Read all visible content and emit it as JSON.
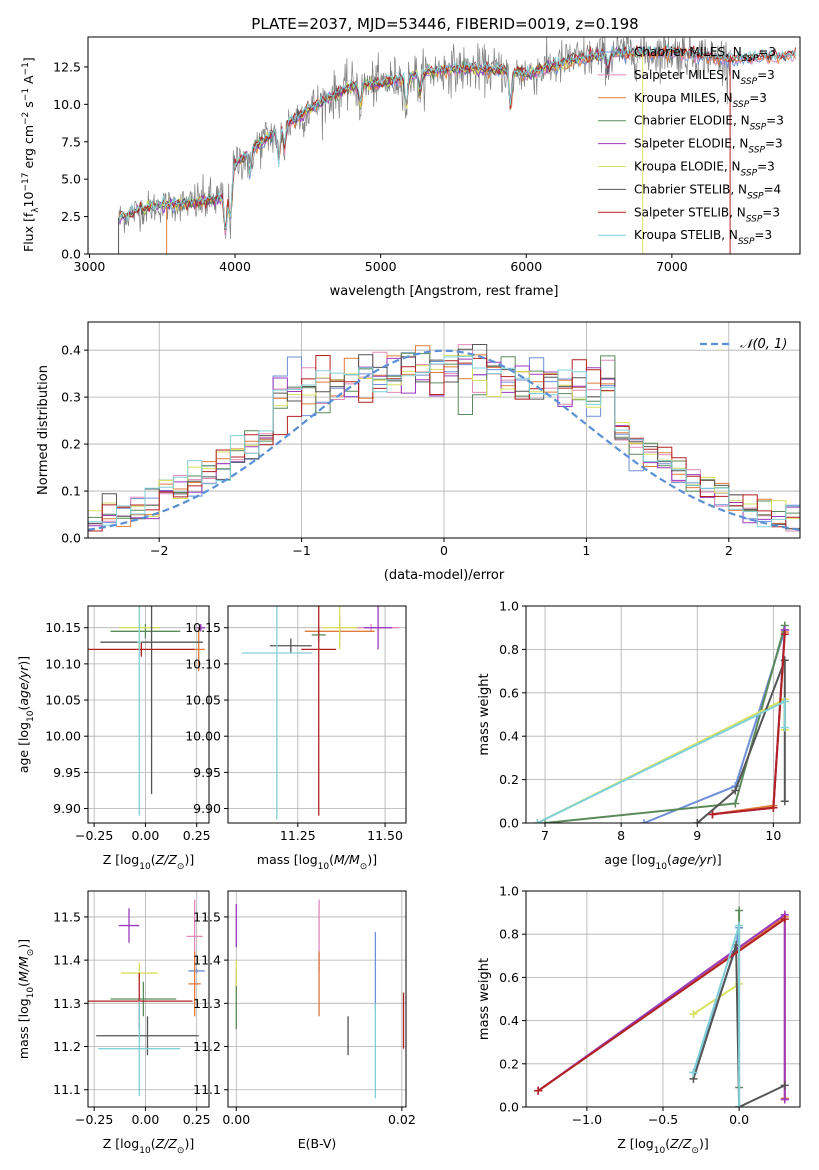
{
  "title": "PLATE=2037, MJD=53446, FIBERID=0019, z=0.198",
  "colors": {
    "Chabrier MILES": "#6f8fd8",
    "Salpeter MILES": "#e08ab8",
    "Kroupa MILES": "#e07b39",
    "Chabrier ELODIE": "#5a8a5a",
    "Salpeter ELODIE": "#9b3bbf",
    "Kroupa ELODIE": "#d8e060",
    "Chabrier STELIB": "#555555",
    "Salpeter STELIB": "#b22222",
    "Kroupa STELIB": "#80d0d8",
    "observed": "#808080",
    "normal": "#5b8fd6",
    "grid": "#b0b0b0"
  },
  "chart_data": [
    {
      "id": "spectrum",
      "type": "line",
      "title": "PLATE=2037, MJD=53446, FIBERID=0019, z=0.198",
      "xlabel": "wavelength [Angstrom, rest frame]",
      "ylabel": "Flux [f_λ 10^-17 erg cm^-2 s^-1 A^-1]",
      "xlim": [
        2990,
        7880
      ],
      "ylim": [
        0,
        14.5
      ],
      "xticks": [
        3000,
        4000,
        5000,
        6000,
        7000
      ],
      "yticks": [
        0.0,
        2.5,
        5.0,
        7.5,
        10.0,
        12.5
      ],
      "legend": [
        {
          "label": "Chabrier MILES, N",
          "sub": "SSP",
          "tail": "=3"
        },
        {
          "label": "Salpeter MILES, N",
          "sub": "SSP",
          "tail": "=3"
        },
        {
          "label": "Kroupa MILES, N",
          "sub": "SSP",
          "tail": "=3"
        },
        {
          "label": "Chabrier ELODIE, N",
          "sub": "SSP",
          "tail": "=3"
        },
        {
          "label": "Salpeter ELODIE, N",
          "sub": "SSP",
          "tail": "=3"
        },
        {
          "label": "Kroupa ELODIE, N",
          "sub": "SSP",
          "tail": "=3"
        },
        {
          "label": "Chabrier STELIB, N",
          "sub": "SSP",
          "tail": "=4"
        },
        {
          "label": "Salpeter STELIB, N",
          "sub": "SSP",
          "tail": "=3"
        },
        {
          "label": "Kroupa STELIB, N",
          "sub": "SSP",
          "tail": "=3"
        }
      ],
      "legend_loc": "right",
      "grid": false,
      "continuum_anchors": {
        "x": [
          3200,
          3400,
          3600,
          3800,
          3950,
          4000,
          4200,
          4400,
          4600,
          4800,
          5000,
          5200,
          5500,
          5800,
          6000,
          6300,
          6600,
          7000,
          7400,
          7800
        ],
        "y": [
          2.4,
          3.1,
          3.3,
          3.5,
          3.8,
          6.0,
          7.6,
          9.0,
          10.2,
          11.2,
          11.4,
          11.9,
          12.4,
          12.3,
          12.0,
          12.9,
          13.4,
          13.5,
          13.0,
          13.3
        ]
      },
      "absorption_features": [
        {
          "x": 3934,
          "depth": 2.5
        },
        {
          "x": 3969,
          "depth": 2.3
        },
        {
          "x": 4101,
          "depth": 1.5
        },
        {
          "x": 4300,
          "depth": 2.2
        },
        {
          "x": 4340,
          "depth": 1.5
        },
        {
          "x": 4861,
          "depth": 1.4
        },
        {
          "x": 5175,
          "depth": 2.2
        },
        {
          "x": 5270,
          "depth": 1.3
        },
        {
          "x": 5892,
          "depth": 2.4
        },
        {
          "x": 6563,
          "depth": 1.0
        }
      ]
    },
    {
      "id": "residuals",
      "type": "histogram",
      "xlabel": "(data-model)/error",
      "ylabel": "Normed distribution",
      "xlim": [
        -2.5,
        2.5
      ],
      "ylim": [
        0,
        0.46
      ],
      "xticks": [
        -2,
        -1,
        0,
        1,
        2
      ],
      "yticks": [
        0.0,
        0.1,
        0.2,
        0.3,
        0.4
      ],
      "bin_width": 0.1,
      "legend": "𝒩(0, 1)",
      "legend_loc": "upper right",
      "grid": true
    },
    {
      "id": "age_vs_Z",
      "type": "scatter",
      "xlabel": "Z [log10(Z/Z⊙)]",
      "ylabel": "age [log10(age/yr)]",
      "xlim": [
        -0.28,
        0.31
      ],
      "ylim": [
        9.88,
        10.18
      ],
      "xticks": [
        -0.25,
        0.0,
        0.25
      ],
      "yticks": [
        9.9,
        9.95,
        10.0,
        10.05,
        10.1,
        10.15
      ],
      "grid": true,
      "points": [
        {
          "model": "Chabrier MILES",
          "x": 0.27,
          "y": 10.15,
          "xerr": 0.02,
          "yerr": 0.005
        },
        {
          "model": "Salpeter MILES",
          "x": 0.27,
          "y": 10.15,
          "xerr": 0.02,
          "yerr": 0.005
        },
        {
          "model": "Kroupa MILES",
          "x": 0.26,
          "y": 10.12,
          "xerr": 0.03,
          "yerr": 0.03
        },
        {
          "model": "Chabrier ELODIE",
          "x": 0.0,
          "y": 10.145,
          "xerr": 0.17,
          "yerr": 0.01
        },
        {
          "model": "Salpeter ELODIE",
          "x": 0.27,
          "y": 10.15,
          "xerr": 0.02,
          "yerr": 0.005
        },
        {
          "model": "Kroupa ELODIE",
          "x": -0.03,
          "y": 10.15,
          "xerr": 0.1,
          "yerr": 0.03
        },
        {
          "model": "Chabrier STELIB",
          "x": 0.03,
          "y": 10.13,
          "xerr": 0.25,
          "yerr": 0.21
        },
        {
          "model": "Salpeter STELIB",
          "x": -0.02,
          "y": 10.12,
          "xerr": 0.26,
          "yerr": 0.01
        },
        {
          "model": "Kroupa STELIB",
          "x": -0.03,
          "y": 10.13,
          "xerr": 0.01,
          "yerr": 0.24
        }
      ]
    },
    {
      "id": "age_vs_mass",
      "type": "scatter",
      "xlabel": "mass [log10(M/M⊙)]",
      "ylabel": "",
      "xlim": [
        11.05,
        11.56
      ],
      "ylim": [
        9.88,
        10.18
      ],
      "xticks": [
        11.25,
        11.5
      ],
      "yticks": [
        9.9,
        9.95,
        10.0,
        10.05,
        10.1,
        10.15
      ],
      "grid": true,
      "points": [
        {
          "model": "Chabrier MILES",
          "x": 11.37,
          "y": 10.15,
          "xerr": 0.01,
          "yerr": 0.005
        },
        {
          "model": "Salpeter MILES",
          "x": 11.46,
          "y": 10.15,
          "xerr": 0.08,
          "yerr": 0.005
        },
        {
          "model": "Kroupa MILES",
          "x": 11.37,
          "y": 10.145,
          "xerr": 0.1,
          "yerr": 0.02
        },
        {
          "model": "Chabrier ELODIE",
          "x": 11.31,
          "y": 10.14,
          "xerr": 0.02,
          "yerr": 0.01
        },
        {
          "model": "Salpeter ELODIE",
          "x": 11.48,
          "y": 10.15,
          "xerr": 0.04,
          "yerr": 0.03
        },
        {
          "model": "Kroupa ELODIE",
          "x": 11.37,
          "y": 10.15,
          "xerr": 0.05,
          "yerr": 0.03
        },
        {
          "model": "Chabrier STELIB",
          "x": 11.23,
          "y": 10.125,
          "xerr": 0.06,
          "yerr": 0.01
        },
        {
          "model": "Salpeter STELIB",
          "x": 11.31,
          "y": 10.12,
          "xerr": 0.05,
          "yerr": 0.23
        },
        {
          "model": "Kroupa STELIB",
          "x": 11.19,
          "y": 10.115,
          "xerr": 0.1,
          "yerr": 0.23
        }
      ]
    },
    {
      "id": "weight_vs_age",
      "type": "line",
      "xlabel": "age [log10(age/yr)]",
      "ylabel": "mass weight",
      "xlim": [
        6.75,
        10.35
      ],
      "ylim": [
        0,
        1.0
      ],
      "xticks": [
        7,
        8,
        9,
        10
      ],
      "yticks": [
        0.0,
        0.2,
        0.4,
        0.6,
        0.8,
        1.0
      ],
      "grid": true,
      "series": [
        {
          "model": "Chabrier MILES",
          "x": [
            8.3,
            9.5,
            10.15
          ],
          "y": [
            0.0,
            0.17,
            0.89
          ]
        },
        {
          "model": "Salpeter MILES",
          "x": [
            9.2,
            10.0,
            10.15
          ],
          "y": [
            0.04,
            0.07,
            0.89
          ]
        },
        {
          "model": "Kroupa MILES",
          "x": [
            9.2,
            10.0,
            10.15
          ],
          "y": [
            0.04,
            0.08,
            0.88
          ]
        },
        {
          "model": "Chabrier ELODIE",
          "x": [
            7.0,
            9.5,
            10.15
          ],
          "y": [
            0.0,
            0.09,
            0.91
          ]
        },
        {
          "model": "Salpeter ELODIE",
          "x": [
            9.2,
            10.0,
            10.15
          ],
          "y": [
            0.04,
            0.07,
            0.89
          ]
        },
        {
          "model": "Kroupa ELODIE",
          "x": [
            6.9,
            10.15,
            10.15
          ],
          "y": [
            0.0,
            0.57,
            0.43
          ]
        },
        {
          "model": "Chabrier STELIB",
          "x": [
            9.0,
            9.5,
            10.15,
            10.15
          ],
          "y": [
            0.0,
            0.15,
            0.75,
            0.1
          ]
        },
        {
          "model": "Salpeter STELIB",
          "x": [
            9.2,
            10.0,
            10.15
          ],
          "y": [
            0.04,
            0.07,
            0.87
          ]
        },
        {
          "model": "Kroupa STELIB",
          "x": [
            6.9,
            10.15,
            10.15
          ],
          "y": [
            0.0,
            0.56,
            0.44
          ]
        }
      ]
    },
    {
      "id": "mass_vs_Z",
      "type": "scatter",
      "xlabel": "Z [log10(Z/Z⊙)]",
      "ylabel": "mass [log10(M/M⊙)]",
      "xlim": [
        -0.28,
        0.31
      ],
      "ylim": [
        11.06,
        11.56
      ],
      "xticks": [
        -0.25,
        0.0,
        0.25
      ],
      "yticks": [
        11.1,
        11.2,
        11.3,
        11.4,
        11.5
      ],
      "grid": true,
      "points": [
        {
          "model": "Chabrier MILES",
          "x": 0.25,
          "y": 11.375,
          "xerr": 0.04,
          "yerr": 0.005
        },
        {
          "model": "Salpeter MILES",
          "x": 0.24,
          "y": 11.455,
          "xerr": 0.04,
          "yerr": 0.085
        },
        {
          "model": "Kroupa MILES",
          "x": 0.24,
          "y": 11.345,
          "xerr": 0.03,
          "yerr": 0.075
        },
        {
          "model": "Chabrier ELODIE",
          "x": -0.01,
          "y": 11.31,
          "xerr": 0.16,
          "yerr": 0.04
        },
        {
          "model": "Salpeter ELODIE",
          "x": -0.08,
          "y": 11.48,
          "xerr": 0.05,
          "yerr": 0.04
        },
        {
          "model": "Kroupa ELODIE",
          "x": -0.03,
          "y": 11.37,
          "xerr": 0.09,
          "yerr": 0.025
        },
        {
          "model": "Chabrier STELIB",
          "x": 0.01,
          "y": 11.225,
          "xerr": 0.25,
          "yerr": 0.045
        },
        {
          "model": "Salpeter STELIB",
          "x": -0.03,
          "y": 11.305,
          "xerr": 0.26,
          "yerr": 0.065
        },
        {
          "model": "Kroupa STELIB",
          "x": -0.03,
          "y": 11.195,
          "xerr": 0.2,
          "yerr": 0.11
        }
      ]
    },
    {
      "id": "mass_vs_EBV",
      "type": "scatter",
      "xlabel": "E(B-V)",
      "ylabel": "",
      "xlim": [
        -0.001,
        0.0205
      ],
      "ylim": [
        11.06,
        11.56
      ],
      "xticks": [
        0.0,
        0.02
      ],
      "yticks": [
        11.1,
        11.2,
        11.3,
        11.4,
        11.5
      ],
      "grid": true,
      "points": [
        {
          "model": "Chabrier MILES",
          "x": 0.0168,
          "y": 11.375,
          "xerr": 0,
          "yerr": 0.09
        },
        {
          "model": "Salpeter MILES",
          "x": 0.01,
          "y": 11.455,
          "xerr": 0,
          "yerr": 0.085
        },
        {
          "model": "Kroupa MILES",
          "x": 0.01,
          "y": 11.345,
          "xerr": 0,
          "yerr": 0.075
        },
        {
          "model": "Chabrier ELODIE",
          "x": 0.0,
          "y": 11.31,
          "xerr": 0,
          "yerr": 0.07
        },
        {
          "model": "Salpeter ELODIE",
          "x": 0.0,
          "y": 11.48,
          "xerr": 0,
          "yerr": 0.05
        },
        {
          "model": "Kroupa ELODIE",
          "x": 0.0,
          "y": 11.37,
          "xerr": 0,
          "yerr": 0.03
        },
        {
          "model": "Chabrier STELIB",
          "x": 0.0135,
          "y": 11.225,
          "xerr": 0,
          "yerr": 0.045
        },
        {
          "model": "Salpeter STELIB",
          "x": 0.0202,
          "y": 11.26,
          "xerr": 0,
          "yerr": 0.065
        },
        {
          "model": "Kroupa STELIB",
          "x": 0.0168,
          "y": 11.19,
          "xerr": 0,
          "yerr": 0.11
        }
      ]
    },
    {
      "id": "weight_vs_Z",
      "type": "line",
      "xlabel": "Z [log10(Z/Z⊙)]",
      "ylabel": "mass weight",
      "xlim": [
        -1.4,
        0.4
      ],
      "ylim": [
        0,
        1.0
      ],
      "xticks": [
        -1.0,
        -0.5,
        0.0
      ],
      "yticks": [
        0.0,
        0.2,
        0.4,
        0.6,
        0.8,
        1.0
      ],
      "grid": true,
      "series": [
        {
          "model": "Chabrier MILES",
          "x": [
            -0.3,
            -0.02,
            0.0
          ],
          "y": [
            0.16,
            0.74,
            0.83
          ]
        },
        {
          "model": "Salpeter MILES",
          "x": [
            -1.32,
            0.3,
            0.3
          ],
          "y": [
            0.075,
            0.89,
            0.035
          ]
        },
        {
          "model": "Kroupa MILES",
          "x": [
            -1.32,
            0.3,
            0.3
          ],
          "y": [
            0.075,
            0.88,
            0.04
          ]
        },
        {
          "model": "Chabrier ELODIE",
          "x": [
            0.0,
            0.0,
            0.0
          ],
          "y": [
            0.91,
            0.09,
            0.0
          ]
        },
        {
          "model": "Salpeter ELODIE",
          "x": [
            -1.32,
            0.3,
            0.3
          ],
          "y": [
            0.075,
            0.89,
            0.035
          ]
        },
        {
          "model": "Kroupa ELODIE",
          "x": [
            -0.3,
            0.0
          ],
          "y": [
            0.43,
            0.57
          ]
        },
        {
          "model": "Chabrier STELIB",
          "x": [
            -0.3,
            -0.02,
            0.0,
            0.3
          ],
          "y": [
            0.13,
            0.75,
            0.0,
            0.1
          ]
        },
        {
          "model": "Salpeter STELIB",
          "x": [
            -1.32,
            0.3
          ],
          "y": [
            0.075,
            0.87
          ]
        },
        {
          "model": "Kroupa STELIB",
          "x": [
            -0.3,
            0.0,
            0.0
          ],
          "y": [
            0.16,
            0.84,
            0.0
          ]
        }
      ]
    }
  ]
}
